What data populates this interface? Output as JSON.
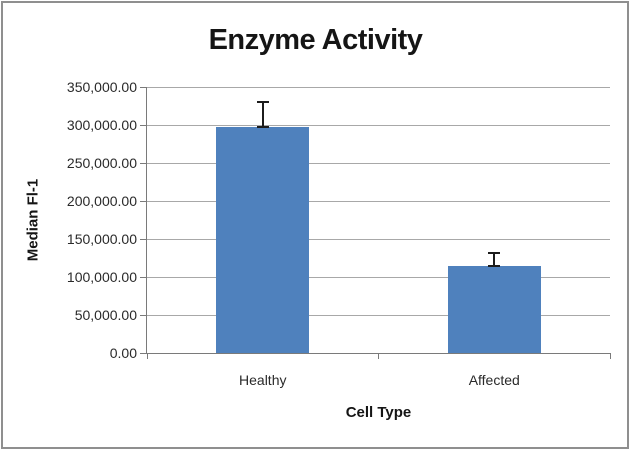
{
  "chart_data": {
    "type": "bar",
    "title": "Enzyme Activity",
    "xlabel": "Cell Type",
    "ylabel": "Median Fl-1",
    "categories": [
      "Healthy",
      "Affected"
    ],
    "values": [
      298000,
      115000
    ],
    "error_plus": [
      32000,
      17000
    ],
    "ylim": [
      0,
      350000
    ],
    "ytick_step": 50000,
    "yticks": [
      {
        "value": 350000,
        "label": "350,000.00"
      },
      {
        "value": 300000,
        "label": "300,000.00"
      },
      {
        "value": 250000,
        "label": "250,000.00"
      },
      {
        "value": 200000,
        "label": "200,000.00"
      },
      {
        "value": 150000,
        "label": "150,000.00"
      },
      {
        "value": 100000,
        "label": "100,000.00"
      },
      {
        "value": 50000,
        "label": "50,000.00"
      },
      {
        "value": 0,
        "label": "0.00"
      }
    ],
    "grid": true,
    "legend": "none",
    "colors": {
      "bar": "#4f81bd",
      "gridline": "#a8a8a8",
      "axis": "#7a7a7a",
      "error_bar": "#1c1c1c",
      "text": "#1f1f1f",
      "frame_border": "#8f8f8f",
      "background": "#ffffff"
    }
  }
}
